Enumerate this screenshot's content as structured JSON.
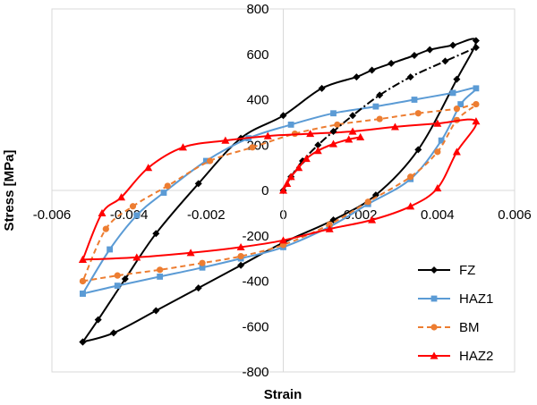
{
  "chart_data": {
    "type": "scatter",
    "title": "",
    "xlabel": "Strain",
    "ylabel": "Stress [MPa]",
    "xlim": [
      -0.006,
      0.006
    ],
    "ylim": [
      -800,
      800
    ],
    "x_ticks": [
      "-0.006",
      "-0.004",
      "-0.002",
      "0",
      "0.002",
      "0.004",
      "0.006"
    ],
    "y_ticks": [
      "800",
      "600",
      "400",
      "200",
      "0",
      "-200",
      "-400",
      "-600",
      "-800"
    ],
    "grid": false,
    "legend_position": "bottom-right",
    "legend": [
      "FZ",
      "HAZ1",
      "BM",
      "HAZ2"
    ],
    "series": [
      {
        "name": "FZ",
        "color": "#000000",
        "marker": "diamond",
        "line_style": "solid",
        "x": [
          -0.0052,
          -0.0044,
          -0.0033,
          -0.0022,
          -0.0011,
          0.0,
          0.0013,
          0.0024,
          0.0035,
          0.0045,
          0.005,
          0.0044,
          0.0038,
          0.0034,
          0.0028,
          0.0023,
          0.0019,
          0.001,
          0.0,
          -0.0011,
          -0.0022,
          -0.0033,
          -0.0041,
          -0.0048,
          -0.0052
        ],
        "y": [
          -668,
          -628,
          -530,
          -430,
          -330,
          -230,
          -130,
          -20,
          180,
          490,
          660,
          640,
          620,
          595,
          560,
          530,
          500,
          450,
          330,
          230,
          30,
          -190,
          -390,
          -570,
          -668
        ]
      },
      {
        "name": "HAZ1",
        "color": "#5B9BD5",
        "marker": "square",
        "line_style": "solid",
        "x": [
          -0.0052,
          -0.0043,
          -0.0032,
          -0.0021,
          -0.0011,
          0.0,
          0.0012,
          0.0022,
          0.0033,
          0.0041,
          0.0046,
          0.005,
          0.0044,
          0.0034,
          0.0024,
          0.0013,
          0.0002,
          -0.0009,
          -0.002,
          -0.0031,
          -0.0038,
          -0.0045,
          -0.0052
        ],
        "y": [
          -455,
          -420,
          -380,
          -340,
          -300,
          -250,
          -160,
          -60,
          50,
          220,
          380,
          450,
          430,
          400,
          370,
          340,
          290,
          230,
          130,
          -10,
          -110,
          -260,
          -455
        ]
      },
      {
        "name": "BM",
        "color": "#ED7D31",
        "marker": "circle",
        "line_style": "dashed",
        "x": [
          -0.0052,
          -0.0043,
          -0.0032,
          -0.0021,
          -0.0011,
          0.0,
          0.0012,
          0.0022,
          0.0033,
          0.004,
          0.0045,
          0.005,
          0.0045,
          0.0035,
          0.0025,
          0.0014,
          0.0003,
          -0.0008,
          -0.0019,
          -0.003,
          -0.0039,
          -0.0046,
          -0.0052
        ],
        "y": [
          -400,
          -375,
          -350,
          -320,
          -290,
          -240,
          -150,
          -50,
          60,
          170,
          310,
          380,
          360,
          340,
          315,
          290,
          250,
          190,
          130,
          20,
          -70,
          -170,
          -400
        ]
      },
      {
        "name": "HAZ2",
        "color": "#FF0000",
        "marker": "triangle",
        "line_style": "solid",
        "x": [
          -0.0052,
          -0.0038,
          -0.0024,
          -0.0011,
          0.0,
          0.0012,
          0.0023,
          0.0033,
          0.004,
          0.0045,
          0.005,
          0.004,
          0.0029,
          0.0018,
          0.0007,
          -0.0004,
          -0.0015,
          -0.0026,
          -0.0035,
          -0.0042,
          -0.0047,
          -0.0052
        ],
        "y": [
          -305,
          -295,
          -275,
          -250,
          -220,
          -170,
          -130,
          -70,
          10,
          170,
          305,
          295,
          280,
          260,
          250,
          240,
          220,
          190,
          100,
          -30,
          -100,
          -305
        ]
      },
      {
        "name": "",
        "color": "#000000",
        "marker": "diamond",
        "line_style": "dash-dot",
        "x": [
          0.0,
          0.0002,
          0.0005,
          0.0009,
          0.0013,
          0.0018,
          0.0025,
          0.0033,
          0.0042,
          0.005
        ],
        "y": [
          0,
          60,
          130,
          200,
          260,
          330,
          420,
          500,
          570,
          630
        ]
      },
      {
        "name": "",
        "color": "#FF0000",
        "marker": "triangle",
        "line_style": "solid",
        "x": [
          0.0,
          0.0001,
          0.0002,
          0.0004,
          0.0006,
          0.0009,
          0.0013,
          0.0017,
          0.002
        ],
        "y": [
          0,
          30,
          60,
          100,
          140,
          175,
          205,
          225,
          235
        ]
      }
    ]
  }
}
